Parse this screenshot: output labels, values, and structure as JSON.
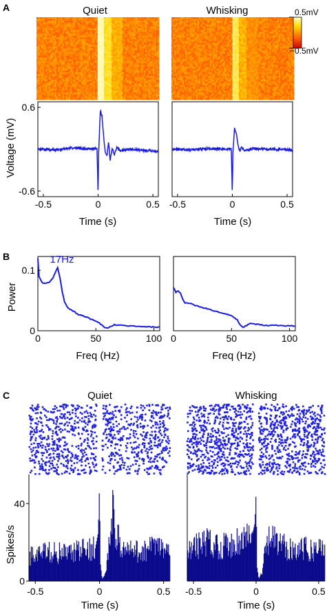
{
  "panels": {
    "a": "A",
    "b": "B",
    "c": "C"
  },
  "conditions": [
    "Quiet",
    "Whisking"
  ],
  "colorbar": {
    "max_label": "0.5mV",
    "min_label": "−0.5mV"
  },
  "colors": {
    "trace": "#1a1adc",
    "hist": "#0a0a8c",
    "raster": "#2020e0"
  },
  "chart_data": [
    {
      "panel": "A-heatmap",
      "type": "heatmap",
      "titles": [
        "Quiet",
        "Whisking"
      ],
      "colormap": "hot",
      "clim_labels": [
        "0.5mV",
        "−0.5mV"
      ]
    },
    {
      "panel": "A-trace",
      "type": "line",
      "xlabel": "Time (s)",
      "ylabel": "Voltage (mV)",
      "xlim": [
        -0.55,
        0.55
      ],
      "ylim": [
        -0.68,
        0.68
      ],
      "xticks": [
        "-0.5",
        "0",
        "0.5"
      ],
      "yticks": [
        "0.6",
        "-0.6"
      ],
      "series": [
        {
          "condition": "Quiet",
          "x": [
            -0.55,
            -0.4,
            -0.2,
            -0.05,
            -0.01,
            0,
            0.005,
            0.02,
            0.035,
            0.05,
            0.065,
            0.08,
            0.095,
            0.11,
            0.13,
            0.15,
            0.17,
            0.2,
            0.3,
            0.55
          ],
          "y": [
            0,
            -0.01,
            0.02,
            0,
            0.01,
            -0.65,
            -0.05,
            0.55,
            0.48,
            0.2,
            -0.05,
            -0.1,
            0.1,
            -0.15,
            0.02,
            -0.08,
            0.02,
            -0.02,
            0,
            -0.03
          ]
        },
        {
          "condition": "Whisking",
          "x": [
            -0.55,
            -0.4,
            -0.2,
            -0.05,
            -0.01,
            0,
            0.005,
            0.02,
            0.035,
            0.05,
            0.065,
            0.08,
            0.12,
            0.2,
            0.35,
            0.55
          ],
          "y": [
            0,
            -0.01,
            0.01,
            0,
            0.01,
            -0.65,
            -0.05,
            0.3,
            0.24,
            0.08,
            -0.03,
            0.02,
            -0.02,
            0.01,
            0,
            -0.01
          ]
        }
      ]
    },
    {
      "panel": "B",
      "type": "line",
      "xlabel": "Freq (Hz)",
      "ylabel": "Power",
      "xlim": [
        0,
        105
      ],
      "ylim": [
        0,
        0.123
      ],
      "xticks": [
        "0",
        "50",
        "100"
      ],
      "yticks": [
        "0.1",
        "0"
      ],
      "annotation": "17Hz",
      "series": [
        {
          "condition": "Quiet",
          "x": [
            0,
            1,
            3,
            5,
            8,
            10,
            13,
            15,
            17,
            19,
            21,
            23,
            26,
            30,
            35,
            40,
            45,
            50,
            55,
            58,
            60,
            62,
            66,
            70,
            80,
            90,
            100,
            105
          ],
          "y": [
            0.12,
            0.09,
            0.082,
            0.078,
            0.079,
            0.08,
            0.088,
            0.097,
            0.105,
            0.088,
            0.065,
            0.048,
            0.038,
            0.033,
            0.027,
            0.024,
            0.02,
            0.016,
            0.01,
            0.005,
            0.004,
            0.006,
            0.01,
            0.009,
            0.008,
            0.007,
            0.006,
            0.006
          ]
        },
        {
          "condition": "Whisking",
          "x": [
            0,
            2,
            4,
            6,
            8,
            10,
            15,
            20,
            30,
            40,
            50,
            55,
            58,
            60,
            62,
            66,
            70,
            80,
            90,
            100,
            105
          ],
          "y": [
            0.072,
            0.064,
            0.066,
            0.063,
            0.052,
            0.046,
            0.045,
            0.041,
            0.036,
            0.03,
            0.025,
            0.018,
            0.008,
            0.005,
            0.008,
            0.012,
            0.011,
            0.009,
            0.009,
            0.008,
            0.008
          ]
        }
      ]
    },
    {
      "panel": "C-hist",
      "type": "bar",
      "xlabel": "Time (s)",
      "ylabel": "Spikes/s",
      "xlim": [
        -0.55,
        0.55
      ],
      "ylim": [
        0,
        55
      ],
      "xticks": [
        "-0.5",
        "0",
        "0.5"
      ],
      "yticks": [
        "40",
        "0"
      ],
      "series": [
        {
          "condition": "Quiet",
          "x": [
            -0.55,
            -0.4,
            -0.25,
            -0.1,
            -0.03,
            -0.01,
            0,
            0.005,
            0.02,
            0.05,
            0.08,
            0.1,
            0.13,
            0.18,
            0.3,
            0.45,
            0.55
          ],
          "y": [
            13,
            15,
            14,
            16,
            18,
            25,
            52,
            10,
            1,
            4,
            22,
            35,
            25,
            16,
            15,
            18,
            14
          ]
        },
        {
          "condition": "Whisking",
          "x": [
            -0.55,
            -0.4,
            -0.25,
            -0.1,
            -0.03,
            -0.01,
            0,
            0.005,
            0.02,
            0.05,
            0.08,
            0.12,
            0.2,
            0.3,
            0.45,
            0.55
          ],
          "y": [
            16,
            20,
            18,
            22,
            24,
            30,
            48,
            8,
            1,
            5,
            18,
            22,
            18,
            17,
            16,
            18
          ]
        }
      ]
    }
  ]
}
